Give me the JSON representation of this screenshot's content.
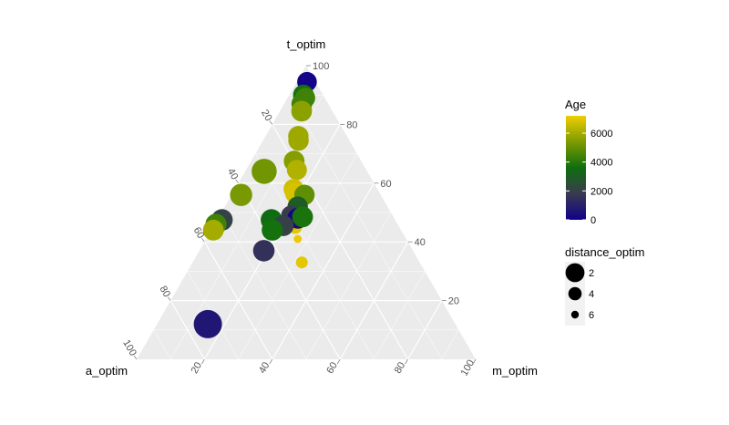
{
  "chart_data": {
    "type": "scatter",
    "subtype": "ternary",
    "axes": {
      "top": "t_optim",
      "left": "a_optim",
      "right": "m_optim"
    },
    "ticks": {
      "t": [
        "20",
        "40",
        "60",
        "80",
        "100"
      ],
      "a": [
        "20",
        "40",
        "60",
        "80",
        "100"
      ],
      "m": [
        "20",
        "40",
        "60",
        "80",
        "100"
      ]
    },
    "grid": true,
    "color_legend": {
      "title": "Age",
      "breaks": [
        "0",
        "2000",
        "4000",
        "6000"
      ],
      "break_values": [
        0,
        2000,
        4000,
        6000
      ],
      "range": [
        0,
        7200
      ],
      "stops": [
        "#10008c",
        "#3a3a50",
        "#0f6e0f",
        "#7e9b00",
        "#f0cd00"
      ]
    },
    "size_legend": {
      "title": "distance_optim",
      "breaks": [
        "2",
        "4",
        "6"
      ],
      "break_values": [
        2,
        4,
        6
      ]
    },
    "points": [
      {
        "t": 94.5,
        "m": 3.0,
        "a": 2.5,
        "age": 100,
        "dist": 3.5
      },
      {
        "t": 90.0,
        "m": 4.2,
        "a": 5.8,
        "age": 3700,
        "dist": 3.2
      },
      {
        "t": 89.0,
        "m": 5.2,
        "a": 5.8,
        "age": 4400,
        "dist": 3.4
      },
      {
        "t": 87.0,
        "m": 5.2,
        "a": 7.8,
        "age": 4400,
        "dist": 3.2
      },
      {
        "t": 84.5,
        "m": 6.4,
        "a": 9.1,
        "age": 5600,
        "dist": 3.2
      },
      {
        "t": 76.0,
        "m": 9.7,
        "a": 14.3,
        "age": 5900,
        "dist": 3.3
      },
      {
        "t": 74.5,
        "m": 10.5,
        "a": 15.0,
        "age": 5900,
        "dist": 3.3
      },
      {
        "t": 67.5,
        "m": 12.7,
        "a": 19.8,
        "age": 5500,
        "dist": 3.2
      },
      {
        "t": 64.5,
        "m": 15.0,
        "a": 20.5,
        "age": 6200,
        "dist": 3.4
      },
      {
        "t": 58.0,
        "m": 17.3,
        "a": 24.7,
        "age": 6700,
        "dist": 3.4
      },
      {
        "t": 56.5,
        "m": 18.5,
        "a": 25.0,
        "age": 6800,
        "dist": 3.4
      },
      {
        "t": 50.0,
        "m": 21.0,
        "a": 29.0,
        "age": 7000,
        "dist": 4.8
      },
      {
        "t": 45.0,
        "m": 24.3,
        "a": 30.7,
        "age": 7000,
        "dist": 5.2
      },
      {
        "t": 41.0,
        "m": 27.0,
        "a": 32.0,
        "age": 7100,
        "dist": 6.6
      },
      {
        "t": 33.0,
        "m": 32.2,
        "a": 34.8,
        "age": 7000,
        "dist": 5.6
      },
      {
        "t": 64.0,
        "m": 5.6,
        "a": 30.4,
        "age": 5200,
        "dist": 2.0
      },
      {
        "t": 56.0,
        "m": 2.8,
        "a": 41.2,
        "age": 5300,
        "dist": 2.8
      },
      {
        "t": 47.5,
        "m": 1.4,
        "a": 51.1,
        "age": 2100,
        "dist": 3.0
      },
      {
        "t": 46.0,
        "m": 0.4,
        "a": 53.6,
        "age": 4400,
        "dist": 3.1
      },
      {
        "t": 44.0,
        "m": 0.6,
        "a": 55.4,
        "age": 6000,
        "dist": 3.2
      },
      {
        "t": 56.0,
        "m": 21.5,
        "a": 22.5,
        "age": 4900,
        "dist": 3.3
      },
      {
        "t": 52.0,
        "m": 21.5,
        "a": 26.5,
        "age": 3000,
        "dist": 3.3
      },
      {
        "t": 49.0,
        "m": 21.0,
        "a": 30.0,
        "age": 1800,
        "dist": 3.5
      },
      {
        "t": 47.5,
        "m": 16.0,
        "a": 36.5,
        "age": 3500,
        "dist": 3.0
      },
      {
        "t": 48.0,
        "m": 23.5,
        "a": 28.5,
        "age": 200,
        "dist": 3.2
      },
      {
        "t": 48.5,
        "m": 24.7,
        "a": 26.8,
        "age": 3800,
        "dist": 3.2
      },
      {
        "t": 46.0,
        "m": 18.0,
        "a": 36.0,
        "age": 3600,
        "dist": 3.3
      },
      {
        "t": 45.5,
        "m": 20.5,
        "a": 34.0,
        "age": 2000,
        "dist": 3.2
      },
      {
        "t": 44.0,
        "m": 18.0,
        "a": 38.0,
        "age": 3700,
        "dist": 3.1
      },
      {
        "t": 37.0,
        "m": 19.0,
        "a": 44.0,
        "age": 1500,
        "dist": 3.0
      },
      {
        "t": 12.0,
        "m": 15.0,
        "a": 73.0,
        "age": 700,
        "dist": 1.2
      }
    ]
  }
}
